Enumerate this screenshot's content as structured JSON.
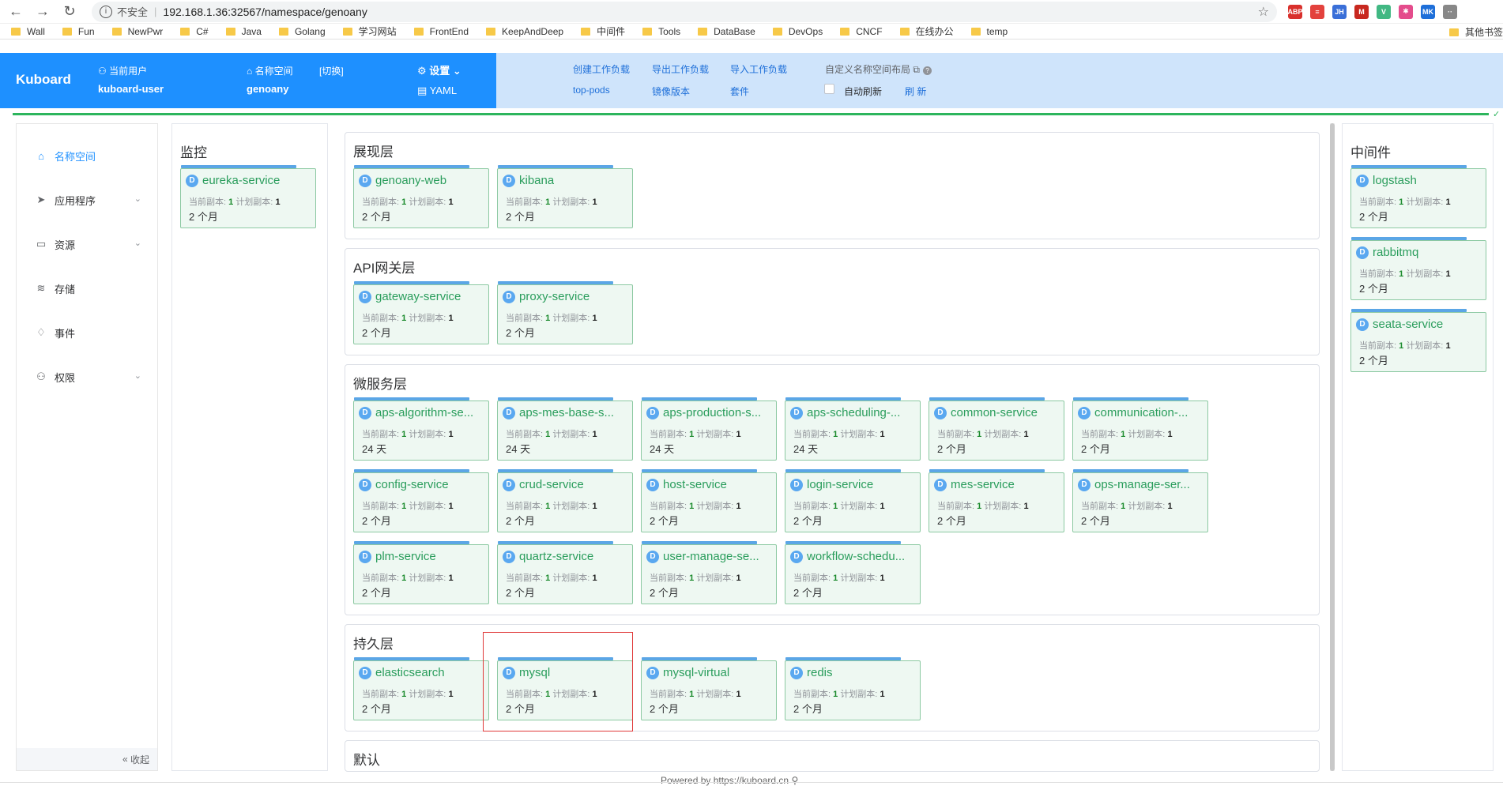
{
  "browser": {
    "insecure": "不安全",
    "url": "192.168.1.36:32567/namespace/genoany",
    "bookmarks": [
      "Wall",
      "Fun",
      "NewPwr",
      "C#",
      "Java",
      "Golang",
      "学习网站",
      "FrontEnd",
      "KeepAndDeep",
      "中间件",
      "Tools",
      "DataBase",
      "DevOps",
      "CNCF",
      "在线办公",
      "temp"
    ],
    "other_bookmarks": "其他书签",
    "extensions": [
      {
        "label": "ABP",
        "color": "#d9302c"
      },
      {
        "label": "≡",
        "color": "#e3423d"
      },
      {
        "label": "JH",
        "color": "#3a6fd8"
      },
      {
        "label": "M",
        "color": "#c8281f"
      },
      {
        "label": "V",
        "color": "#41b883"
      },
      {
        "label": "✱",
        "color": "#e44c8c"
      },
      {
        "label": "MK",
        "color": "#1e6fd9"
      },
      {
        "label": "··",
        "color": "#888888"
      }
    ]
  },
  "header": {
    "logo": "Kuboard",
    "user_label": "当前用户",
    "user": "kuboard-user",
    "ns_label": "名称空间",
    "switch": "[切换]",
    "namespace": "genoany",
    "settings": "设置",
    "yaml": "YAML",
    "links": {
      "create": "创建工作负载",
      "export": "导出工作负载",
      "import": "导入工作负载",
      "top_pods": "top-pods",
      "image_version": "镜像版本",
      "suite": "套件",
      "custom_layout": "自定义名称空间布局",
      "auto_refresh": "自动刷新",
      "refresh": "刷 新"
    }
  },
  "sidebar": {
    "items": [
      {
        "label": "名称空间",
        "icon": "home-icon"
      },
      {
        "label": "应用程序",
        "icon": "send-icon"
      },
      {
        "label": "资源",
        "icon": "box-icon"
      },
      {
        "label": "存储",
        "icon": "database-icon"
      },
      {
        "label": "事件",
        "icon": "bell-icon"
      },
      {
        "label": "权限",
        "icon": "user-icon"
      }
    ],
    "collapse": "收起"
  },
  "replica_labels": {
    "current": "当前副本:",
    "planned": "计划副本:"
  },
  "monitor": {
    "title": "监控",
    "cards": [
      {
        "name": "eureka-service",
        "current": "1",
        "planned": "1",
        "age": "2 个月"
      }
    ]
  },
  "layers": [
    {
      "title": "展现层",
      "cards": [
        {
          "name": "genoany-web",
          "current": "1",
          "planned": "1",
          "age": "2 个月"
        },
        {
          "name": "kibana",
          "current": "1",
          "planned": "1",
          "age": "2 个月"
        }
      ]
    },
    {
      "title": "API网关层",
      "cards": [
        {
          "name": "gateway-service",
          "current": "1",
          "planned": "1",
          "age": "2 个月"
        },
        {
          "name": "proxy-service",
          "current": "1",
          "planned": "1",
          "age": "2 个月"
        }
      ]
    },
    {
      "title": "微服务层",
      "cards": [
        {
          "name": "aps-algorithm-se...",
          "current": "1",
          "planned": "1",
          "age": "24 天"
        },
        {
          "name": "aps-mes-base-s...",
          "current": "1",
          "planned": "1",
          "age": "24 天"
        },
        {
          "name": "aps-production-s...",
          "current": "1",
          "planned": "1",
          "age": "24 天"
        },
        {
          "name": "aps-scheduling-...",
          "current": "1",
          "planned": "1",
          "age": "24 天"
        },
        {
          "name": "common-service",
          "current": "1",
          "planned": "1",
          "age": "2 个月"
        },
        {
          "name": "communication-...",
          "current": "1",
          "planned": "1",
          "age": "2 个月"
        },
        {
          "name": "config-service",
          "current": "1",
          "planned": "1",
          "age": "2 个月"
        },
        {
          "name": "crud-service",
          "current": "1",
          "planned": "1",
          "age": "2 个月"
        },
        {
          "name": "host-service",
          "current": "1",
          "planned": "1",
          "age": "2 个月"
        },
        {
          "name": "login-service",
          "current": "1",
          "planned": "1",
          "age": "2 个月"
        },
        {
          "name": "mes-service",
          "current": "1",
          "planned": "1",
          "age": "2 个月"
        },
        {
          "name": "ops-manage-ser...",
          "current": "1",
          "planned": "1",
          "age": "2 个月"
        },
        {
          "name": "plm-service",
          "current": "1",
          "planned": "1",
          "age": "2 个月"
        },
        {
          "name": "quartz-service",
          "current": "1",
          "planned": "1",
          "age": "2 个月"
        },
        {
          "name": "user-manage-se...",
          "current": "1",
          "planned": "1",
          "age": "2 个月"
        },
        {
          "name": "workflow-schedu...",
          "current": "1",
          "planned": "1",
          "age": "2 个月"
        }
      ]
    },
    {
      "title": "持久层",
      "cards": [
        {
          "name": "elasticsearch",
          "current": "1",
          "planned": "1",
          "age": "2 个月"
        },
        {
          "name": "mysql",
          "current": "1",
          "planned": "1",
          "age": "2 个月"
        },
        {
          "name": "mysql-virtual",
          "current": "1",
          "planned": "1",
          "age": "2 个月"
        },
        {
          "name": "redis",
          "current": "1",
          "planned": "1",
          "age": "2 个月"
        }
      ]
    },
    {
      "title": "默认",
      "cards": []
    }
  ],
  "middleware": {
    "title": "中间件",
    "cards": [
      {
        "name": "logstash",
        "current": "1",
        "planned": "1",
        "age": "2 个月"
      },
      {
        "name": "rabbitmq",
        "current": "1",
        "planned": "1",
        "age": "2 个月"
      },
      {
        "name": "seata-service",
        "current": "1",
        "planned": "1",
        "age": "2 个月"
      }
    ]
  },
  "footer": "Powered by https://kuboard.cn"
}
